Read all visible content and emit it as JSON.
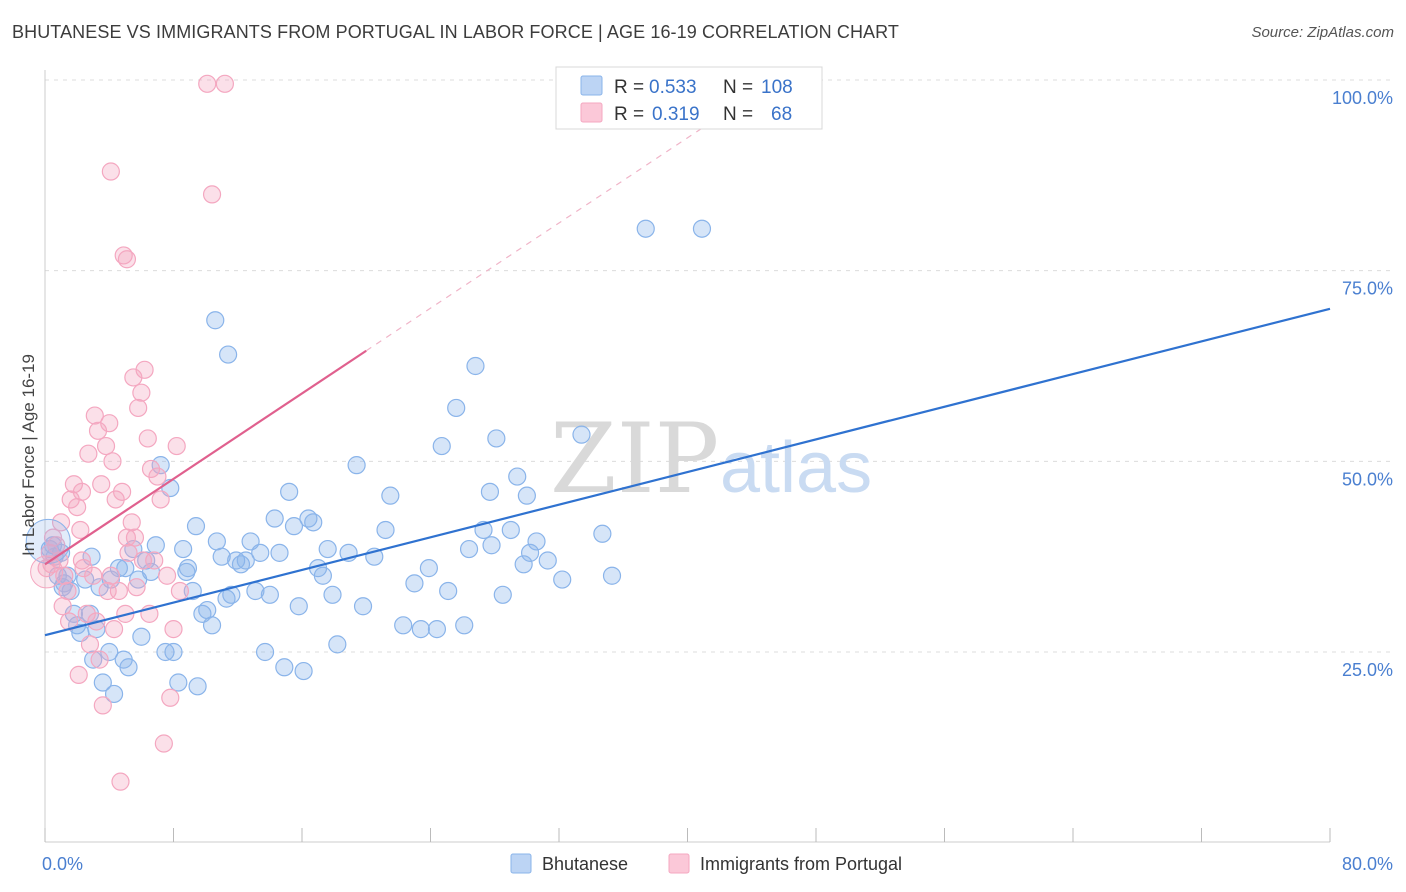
{
  "title": "BHUTANESE VS IMMIGRANTS FROM PORTUGAL IN LABOR FORCE | AGE 16-19 CORRELATION CHART",
  "source": "Source: ZipAtlas.com",
  "watermark": {
    "zip": "ZIP",
    "atlas": "atlas"
  },
  "chart_data": {
    "type": "scatter",
    "title": "BHUTANESE VS IMMIGRANTS FROM PORTUGAL IN LABOR FORCE | AGE 16-19 CORRELATION CHART",
    "xlabel": "",
    "ylabel": "In Labor Force | Age 16-19",
    "xlim": [
      0,
      80
    ],
    "ylim": [
      0,
      103
    ],
    "x_ticks": [
      {
        "value": 0,
        "label": "0.0%"
      },
      {
        "value": 80,
        "label": "80.0%"
      }
    ],
    "y_ticks": [
      {
        "value": 25,
        "label": "25.0%"
      },
      {
        "value": 50,
        "label": "50.0%"
      },
      {
        "value": 75,
        "label": "75.0%"
      },
      {
        "value": 100,
        "label": "100.0%"
      }
    ],
    "legend": [
      {
        "r_label": "R = ",
        "r": "0.533",
        "n_label": "N = ",
        "n": "108",
        "color": "#8ab4ea"
      },
      {
        "r_label": "R = ",
        "r": "0.319",
        "n_label": "N = ",
        "n": "68",
        "color": "#f4a7c0"
      }
    ],
    "series": [
      {
        "name": "Bhutanese",
        "color": "#8ab4ea",
        "line_color": "#2f72d0",
        "trend": {
          "x0": 0,
          "y0": 27.2,
          "x1": 80,
          "y1": 70.0
        },
        "points": [
          [
            0.3,
            38.5
          ],
          [
            0.5,
            39
          ],
          [
            0.6,
            37.5
          ],
          [
            0.8,
            35
          ],
          [
            1,
            38
          ],
          [
            1.2,
            34
          ],
          [
            1.4,
            35
          ],
          [
            1.6,
            33
          ],
          [
            1.8,
            30
          ],
          [
            2,
            28.5
          ],
          [
            2.2,
            27.5
          ],
          [
            2.5,
            34.5
          ],
          [
            2.8,
            30
          ],
          [
            3,
            24
          ],
          [
            3.2,
            28
          ],
          [
            3.4,
            33.5
          ],
          [
            3.6,
            21
          ],
          [
            4,
            25
          ],
          [
            4.3,
            19.5
          ],
          [
            4.6,
            36
          ],
          [
            4.9,
            24
          ],
          [
            5.2,
            23
          ],
          [
            5.5,
            38.5
          ],
          [
            5.8,
            34.5
          ],
          [
            6,
            27
          ],
          [
            6.3,
            37
          ],
          [
            6.6,
            35.5
          ],
          [
            6.9,
            39
          ],
          [
            7.2,
            49.5
          ],
          [
            7.5,
            25
          ],
          [
            7.8,
            46.5
          ],
          [
            8,
            25
          ],
          [
            8.3,
            21
          ],
          [
            8.6,
            38.5
          ],
          [
            8.9,
            36
          ],
          [
            9.2,
            33
          ],
          [
            9.5,
            20.5
          ],
          [
            9.8,
            30
          ],
          [
            10.1,
            30.5
          ],
          [
            10.4,
            28.5
          ],
          [
            10.7,
            39.5
          ],
          [
            11.0,
            37.5
          ],
          [
            11.3,
            32
          ],
          [
            11.6,
            32.5
          ],
          [
            11.9,
            37
          ],
          [
            12.2,
            36.5
          ],
          [
            12.5,
            37
          ],
          [
            12.8,
            39.5
          ],
          [
            13.1,
            33
          ],
          [
            13.4,
            38
          ],
          [
            13.7,
            25
          ],
          [
            14,
            32.5
          ],
          [
            14.3,
            42.5
          ],
          [
            14.6,
            38
          ],
          [
            14.9,
            23
          ],
          [
            15.2,
            46
          ],
          [
            15.5,
            41.5
          ],
          [
            15.8,
            31
          ],
          [
            16.1,
            22.5
          ],
          [
            16.4,
            42.5
          ],
          [
            16.7,
            42
          ],
          [
            17,
            36
          ],
          [
            17.3,
            35
          ],
          [
            17.6,
            38.5
          ],
          [
            17.9,
            32.5
          ],
          [
            18.2,
            26
          ],
          [
            11.4,
            64
          ],
          [
            10.6,
            68.5
          ],
          [
            9.4,
            41.5
          ],
          [
            8.8,
            35.5
          ],
          [
            4.1,
            34.5
          ],
          [
            2.9,
            37.5
          ],
          [
            1.1,
            33.5
          ],
          [
            5.0,
            36
          ],
          [
            18.9,
            38
          ],
          [
            19.4,
            49.5
          ],
          [
            19.8,
            31
          ],
          [
            20.5,
            37.5
          ],
          [
            21.2,
            41
          ],
          [
            21.5,
            45.5
          ],
          [
            22.3,
            28.5
          ],
          [
            23,
            34
          ],
          [
            23.4,
            28
          ],
          [
            23.9,
            36
          ],
          [
            24.4,
            28
          ],
          [
            24.7,
            52
          ],
          [
            25.1,
            33
          ],
          [
            25.6,
            57
          ],
          [
            26.1,
            28.5
          ],
          [
            26.4,
            38.5
          ],
          [
            26.8,
            62.5
          ],
          [
            27.3,
            41
          ],
          [
            27.7,
            46
          ],
          [
            27.8,
            39
          ],
          [
            28.1,
            53
          ],
          [
            28.5,
            32.5
          ],
          [
            29,
            41
          ],
          [
            29.4,
            48
          ],
          [
            29.8,
            36.5
          ],
          [
            30,
            45.5
          ],
          [
            30.2,
            38
          ],
          [
            30.6,
            39.5
          ],
          [
            31.3,
            37
          ],
          [
            32.2,
            34.5
          ],
          [
            33.4,
            53.5
          ],
          [
            34.7,
            40.5
          ],
          [
            35.3,
            35
          ],
          [
            37.4,
            80.5
          ],
          [
            40.9,
            80.5
          ]
        ]
      },
      {
        "name": "Immigrants from Portugal",
        "color": "#f4a7c0",
        "line_color": "#e0608e",
        "trend": {
          "x0": 0,
          "y0": 36.5,
          "x1": 20,
          "y1": 64.5
        },
        "trend_ext": {
          "x0": 20,
          "y0": 64.5,
          "x1": 44,
          "y1": 98
        },
        "points": [
          [
            0.1,
            36
          ],
          [
            0.3,
            38
          ],
          [
            0.5,
            40
          ],
          [
            0.7,
            39
          ],
          [
            0.9,
            37
          ],
          [
            1.0,
            42
          ],
          [
            1.2,
            35
          ],
          [
            1.4,
            33
          ],
          [
            1.6,
            45
          ],
          [
            1.8,
            47
          ],
          [
            2.0,
            44
          ],
          [
            2.2,
            41
          ],
          [
            2.4,
            36
          ],
          [
            2.6,
            30
          ],
          [
            2.8,
            26
          ],
          [
            3.0,
            35
          ],
          [
            3.2,
            29
          ],
          [
            3.4,
            24
          ],
          [
            3.6,
            18
          ],
          [
            3.8,
            52
          ],
          [
            4.0,
            55
          ],
          [
            4.2,
            50
          ],
          [
            4.4,
            45
          ],
          [
            4.6,
            33
          ],
          [
            4.8,
            46
          ],
          [
            5.0,
            30
          ],
          [
            5.2,
            38
          ],
          [
            5.4,
            42
          ],
          [
            5.6,
            40
          ],
          [
            5.8,
            57
          ],
          [
            6.0,
            59
          ],
          [
            6.2,
            62
          ],
          [
            6.4,
            53
          ],
          [
            6.6,
            49
          ],
          [
            6.8,
            37
          ],
          [
            7.0,
            48
          ],
          [
            7.2,
            45
          ],
          [
            7.4,
            13
          ],
          [
            7.6,
            35
          ],
          [
            7.8,
            19
          ],
          [
            8.0,
            28
          ],
          [
            8.2,
            52
          ],
          [
            8.4,
            33
          ],
          [
            0.4,
            36.5
          ],
          [
            1.1,
            31
          ],
          [
            1.5,
            29
          ],
          [
            2.1,
            22
          ],
          [
            2.3,
            37
          ],
          [
            2.7,
            51
          ],
          [
            3.1,
            56
          ],
          [
            3.3,
            54
          ],
          [
            3.5,
            47
          ],
          [
            3.9,
            33
          ],
          [
            4.1,
            35
          ],
          [
            4.3,
            28
          ],
          [
            5.1,
            40
          ],
          [
            5.5,
            61
          ],
          [
            5.7,
            33.5
          ],
          [
            6.1,
            37
          ],
          [
            6.5,
            30
          ],
          [
            4.9,
            77
          ],
          [
            5.1,
            76.5
          ],
          [
            4.1,
            88
          ],
          [
            10.4,
            85
          ],
          [
            10.1,
            99.5
          ],
          [
            11.2,
            99.5
          ],
          [
            4.7,
            8
          ],
          [
            2.3,
            46
          ]
        ]
      }
    ]
  },
  "bottom_legend": {
    "bhutanese": "Bhutanese",
    "portugal": "Immigrants from Portugal"
  }
}
